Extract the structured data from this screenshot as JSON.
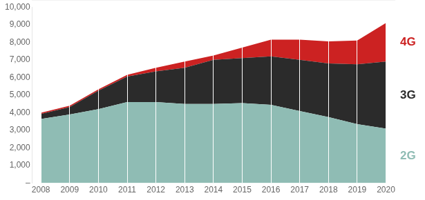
{
  "chart_data": {
    "type": "area",
    "stacked": true,
    "grid": "x",
    "x": [
      2008,
      2009,
      2010,
      2011,
      2012,
      2013,
      2014,
      2015,
      2016,
      2017,
      2018,
      2019,
      2020
    ],
    "series": [
      {
        "name": "2G",
        "color": "#8fbcb4",
        "values": [
          3650,
          3900,
          4200,
          4600,
          4600,
          4500,
          4500,
          4550,
          4450,
          4100,
          3750,
          3350,
          3100
        ]
      },
      {
        "name": "3G",
        "color": "#2b2b2b",
        "values": [
          280,
          420,
          1050,
          1450,
          1750,
          2050,
          2500,
          2550,
          2750,
          2900,
          3050,
          3400,
          3800
        ]
      },
      {
        "name": "4G",
        "color": "#cc2222",
        "values": [
          70,
          80,
          80,
          100,
          200,
          350,
          250,
          600,
          950,
          1150,
          1250,
          1350,
          2200
        ]
      }
    ],
    "xlim": [
      2007.7,
      2020.3
    ],
    "xticks": [
      2008,
      2009,
      2010,
      2011,
      2012,
      2013,
      2014,
      2015,
      2016,
      2017,
      2018,
      2019,
      2020
    ],
    "ylim": [
      0,
      10000
    ],
    "yticks": [
      {
        "value": 0,
        "label": "–"
      },
      {
        "value": 1000,
        "label": "1,000"
      },
      {
        "value": 2000,
        "label": "2,000"
      },
      {
        "value": 3000,
        "label": "3,000"
      },
      {
        "value": 4000,
        "label": "4,000"
      },
      {
        "value": 5000,
        "label": "5,000"
      },
      {
        "value": 6000,
        "label": "6,000"
      },
      {
        "value": 7000,
        "label": "7,000"
      },
      {
        "value": 8000,
        "label": "8,000"
      },
      {
        "value": 9000,
        "label": "9,000"
      },
      {
        "value": 10000,
        "label": "10,000"
      }
    ]
  }
}
